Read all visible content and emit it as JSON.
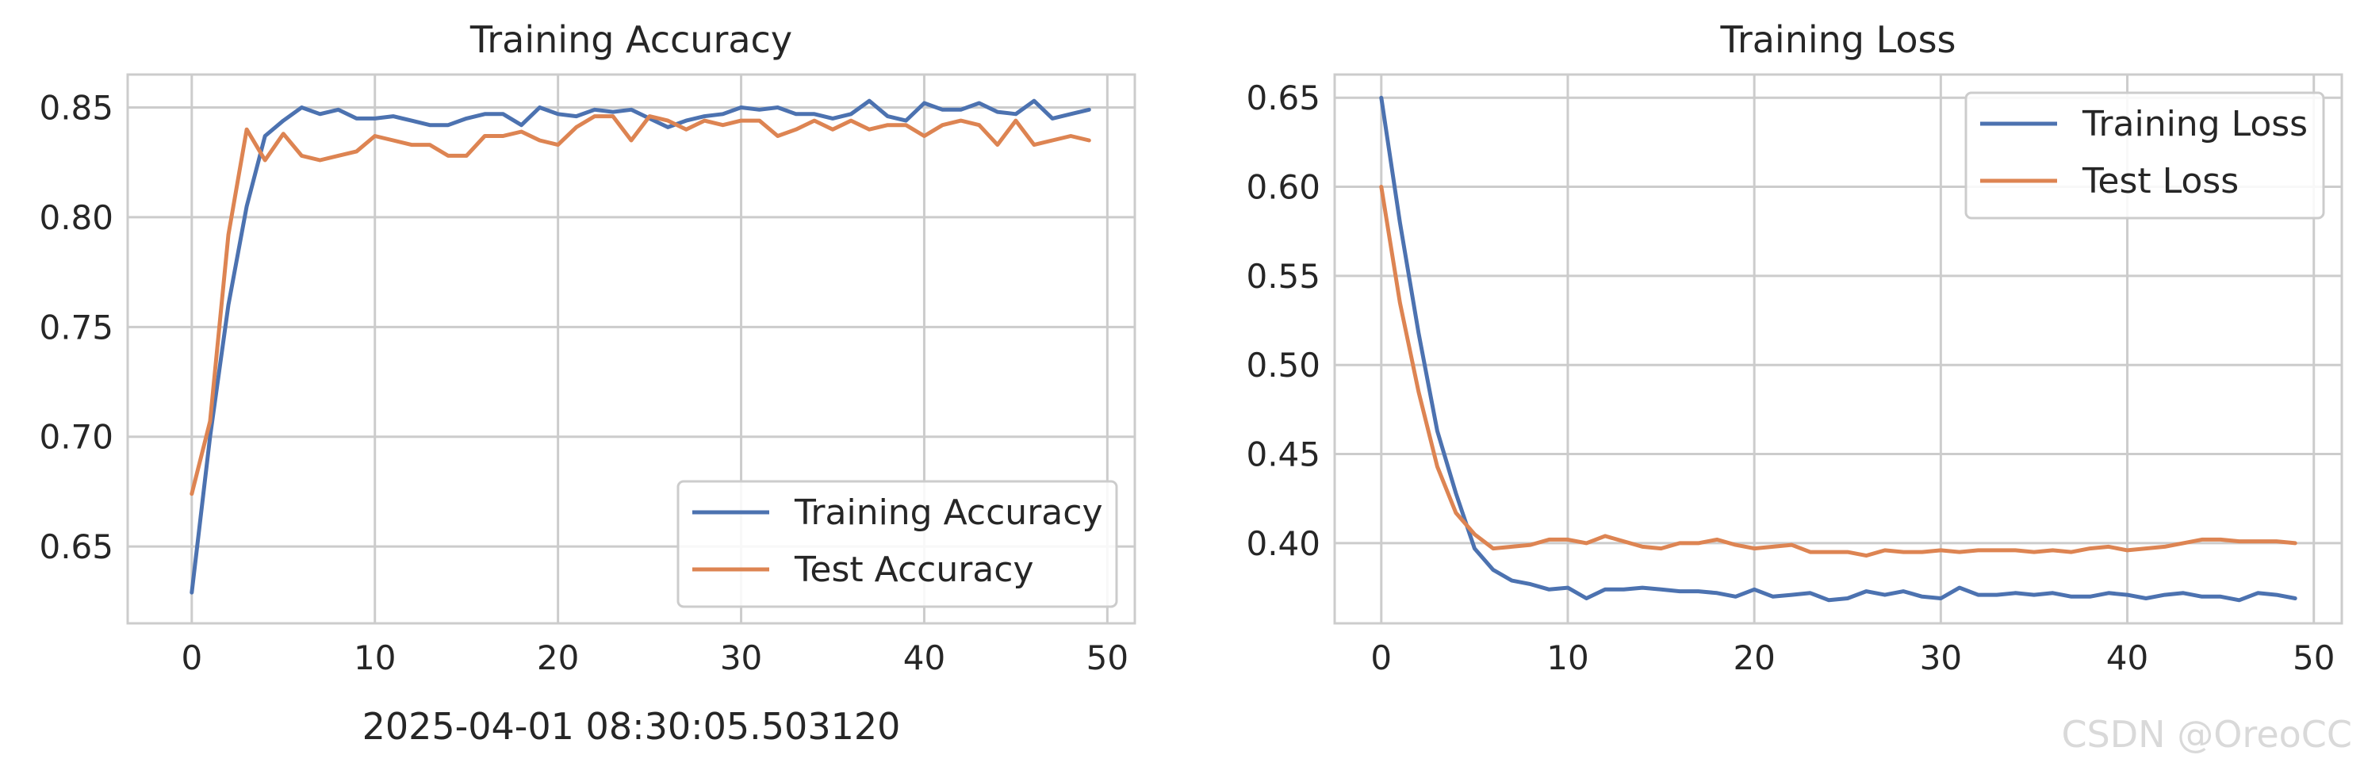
{
  "chart_data": [
    {
      "type": "line",
      "title": "Training Accuracy",
      "xlabel": "2025-04-01 08:30:05.503120",
      "ylabel": "",
      "xlim": [
        -3.5,
        51.5
      ],
      "ylim": [
        0.615,
        0.865
      ],
      "xticks": [
        "0",
        "10",
        "20",
        "30",
        "40",
        "50"
      ],
      "xtick_values": [
        0,
        10,
        20,
        30,
        40,
        50
      ],
      "yticks": [
        "0.65",
        "0.70",
        "0.75",
        "0.80",
        "0.85"
      ],
      "ytick_values": [
        0.65,
        0.7,
        0.75,
        0.8,
        0.85
      ],
      "grid": true,
      "legend": "lower-right",
      "series": [
        {
          "name": "Training Accuracy",
          "color": "#4c72b0",
          "values": [
            0.629,
            0.7,
            0.76,
            0.805,
            0.837,
            0.844,
            0.85,
            0.847,
            0.849,
            0.845,
            0.845,
            0.846,
            0.844,
            0.842,
            0.842,
            0.845,
            0.847,
            0.847,
            0.842,
            0.85,
            0.847,
            0.846,
            0.849,
            0.848,
            0.849,
            0.845,
            0.841,
            0.844,
            0.846,
            0.847,
            0.85,
            0.849,
            0.85,
            0.847,
            0.847,
            0.845,
            0.847,
            0.853,
            0.846,
            0.844,
            0.852,
            0.849,
            0.849,
            0.852,
            0.848,
            0.847,
            0.853,
            0.845,
            0.847,
            0.849
          ]
        },
        {
          "name": "Test Accuracy",
          "color": "#dd8452",
          "values": [
            0.674,
            0.707,
            0.792,
            0.84,
            0.826,
            0.838,
            0.828,
            0.826,
            0.828,
            0.83,
            0.837,
            0.835,
            0.833,
            0.833,
            0.828,
            0.828,
            0.837,
            0.837,
            0.839,
            0.835,
            0.833,
            0.841,
            0.846,
            0.846,
            0.835,
            0.846,
            0.844,
            0.84,
            0.844,
            0.842,
            0.844,
            0.844,
            0.837,
            0.84,
            0.844,
            0.84,
            0.844,
            0.84,
            0.842,
            0.842,
            0.837,
            0.842,
            0.844,
            0.842,
            0.833,
            0.844,
            0.833,
            0.835,
            0.837,
            0.835
          ]
        }
      ]
    },
    {
      "type": "line",
      "title": "Training Loss",
      "xlabel": "",
      "ylabel": "",
      "xlim": [
        -2.5,
        51.5
      ],
      "ylim": [
        0.355,
        0.663
      ],
      "xticks": [
        "0",
        "10",
        "20",
        "30",
        "40",
        "50"
      ],
      "xtick_values": [
        0,
        10,
        20,
        30,
        40,
        50
      ],
      "yticks": [
        "0.40",
        "0.45",
        "0.50",
        "0.55",
        "0.60",
        "0.65"
      ],
      "ytick_values": [
        0.4,
        0.45,
        0.5,
        0.55,
        0.6,
        0.65
      ],
      "grid": true,
      "legend": "upper-right",
      "series": [
        {
          "name": "Training Loss",
          "color": "#4c72b0",
          "values": [
            0.65,
            0.58,
            0.518,
            0.463,
            0.428,
            0.397,
            0.385,
            0.379,
            0.377,
            0.374,
            0.375,
            0.369,
            0.374,
            0.374,
            0.375,
            0.374,
            0.373,
            0.373,
            0.372,
            0.37,
            0.374,
            0.37,
            0.371,
            0.372,
            0.368,
            0.369,
            0.373,
            0.371,
            0.373,
            0.37,
            0.369,
            0.375,
            0.371,
            0.371,
            0.372,
            0.371,
            0.372,
            0.37,
            0.37,
            0.372,
            0.371,
            0.369,
            0.371,
            0.372,
            0.37,
            0.37,
            0.368,
            0.372,
            0.371,
            0.369
          ]
        },
        {
          "name": "Test Loss",
          "color": "#dd8452",
          "values": [
            0.6,
            0.535,
            0.485,
            0.443,
            0.417,
            0.405,
            0.397,
            0.398,
            0.399,
            0.402,
            0.402,
            0.4,
            0.404,
            0.401,
            0.398,
            0.397,
            0.4,
            0.4,
            0.402,
            0.399,
            0.397,
            0.398,
            0.399,
            0.395,
            0.395,
            0.395,
            0.393,
            0.396,
            0.395,
            0.395,
            0.396,
            0.395,
            0.396,
            0.396,
            0.396,
            0.395,
            0.396,
            0.395,
            0.397,
            0.398,
            0.396,
            0.397,
            0.398,
            0.4,
            0.402,
            0.402,
            0.401,
            0.401,
            0.401,
            0.4
          ]
        }
      ]
    }
  ],
  "watermark": "CSDN @OreoCC"
}
